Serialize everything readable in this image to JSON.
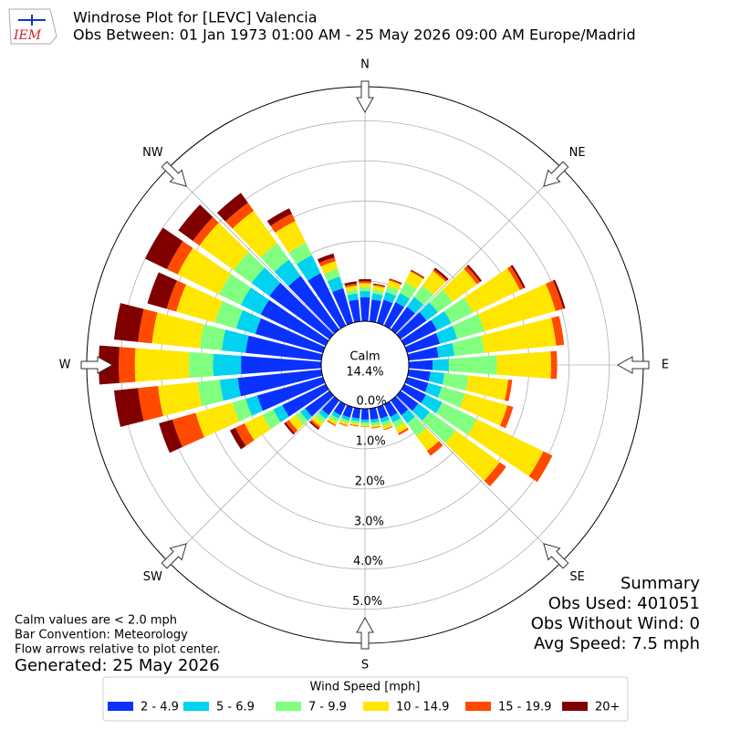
{
  "chart_data": {
    "type": "windrose",
    "logo_text": "IEM",
    "title": "Windrose Plot for [LEVC] Valencia",
    "subtitle": "Obs Between: 01 Jan 1973 01:00 AM - 25 May 2026 09:00 AM Europe/Madrid",
    "compass": [
      "N",
      "NE",
      "E",
      "SE",
      "S",
      "SW",
      "W",
      "NW"
    ],
    "calm": {
      "label": "Calm",
      "value": 14.4,
      "value_label": "14.4%"
    },
    "rlim": [
      0,
      5.85
    ],
    "rticks": [
      {
        "value": 0,
        "label": "0.0%"
      },
      {
        "value": 1,
        "label": "1.0%"
      },
      {
        "value": 2,
        "label": "2.0%"
      },
      {
        "value": 3,
        "label": "3.0%"
      },
      {
        "value": 4,
        "label": "4.0%"
      },
      {
        "value": 5,
        "label": "5.0%"
      }
    ],
    "grid": true,
    "legend_title": "Wind Speed [mph]",
    "series": [
      {
        "name": "2 - 4.9",
        "color": "#0a32ff",
        "values": [
          0.6,
          0.55,
          0.6,
          0.65,
          0.7,
          0.8,
          0.9,
          0.85,
          0.75,
          0.6,
          0.55,
          0.55,
          0.6,
          0.55,
          0.45,
          0.35,
          0.3,
          0.28,
          0.27,
          0.25,
          0.27,
          0.3,
          0.45,
          0.75,
          1.2,
          1.7,
          2.1,
          2.0,
          1.9,
          1.75,
          1.8,
          1.85,
          1.65,
          1.45,
          0.9,
          0.55
        ]
      },
      {
        "name": "5 - 6.9",
        "color": "#00d2f0",
        "values": [
          0.15,
          0.15,
          0.2,
          0.25,
          0.3,
          0.35,
          0.4,
          0.45,
          0.4,
          0.4,
          0.35,
          0.35,
          0.45,
          0.35,
          0.25,
          0.15,
          0.1,
          0.08,
          0.07,
          0.07,
          0.08,
          0.1,
          0.12,
          0.15,
          0.25,
          0.3,
          0.45,
          0.7,
          0.6,
          0.5,
          0.55,
          0.55,
          0.5,
          0.5,
          0.3,
          0.15
        ]
      },
      {
        "name": "7 - 9.9",
        "color": "#80ff80",
        "values": [
          0.1,
          0.1,
          0.15,
          0.3,
          0.35,
          0.45,
          0.6,
          0.7,
          0.75,
          1.2,
          0.6,
          0.6,
          0.95,
          0.8,
          0.4,
          0.15,
          0.1,
          0.07,
          0.06,
          0.06,
          0.07,
          0.1,
          0.12,
          0.15,
          0.3,
          0.35,
          0.55,
          0.6,
          0.55,
          0.55,
          0.6,
          0.55,
          0.5,
          0.35,
          0.2,
          0.1
        ]
      },
      {
        "name": "10 - 14.9",
        "color": "#ffe600",
        "values": [
          0.1,
          0.1,
          0.15,
          0.3,
          0.45,
          0.75,
          1.3,
          1.85,
          1.8,
          1.35,
          1.0,
          1.1,
          1.85,
          1.35,
          0.45,
          0.15,
          0.08,
          0.05,
          0.04,
          0.05,
          0.06,
          0.07,
          0.12,
          0.2,
          0.5,
          0.95,
          1.0,
          1.35,
          1.2,
          1.0,
          1.15,
          1.05,
          1.0,
          0.6,
          0.2,
          0.1
        ]
      },
      {
        "name": "15 - 19.9",
        "color": "#ff4a00",
        "values": [
          0.05,
          0.03,
          0.03,
          0.03,
          0.05,
          0.1,
          0.1,
          0.2,
          0.2,
          0.15,
          0.1,
          0.15,
          0.25,
          0.2,
          0.15,
          0.05,
          0.02,
          0.02,
          0.01,
          0.02,
          0.02,
          0.03,
          0.05,
          0.1,
          0.25,
          0.6,
          0.5,
          0.4,
          0.35,
          0.25,
          0.3,
          0.2,
          0.25,
          0.2,
          0.1,
          0.05
        ]
      },
      {
        "name": "20+",
        "color": "#800000",
        "values": [
          0.05,
          0.02,
          0.02,
          0.02,
          0.05,
          0.05,
          0.05,
          0.05,
          0,
          0,
          0,
          0,
          0,
          0,
          0,
          0,
          0,
          0,
          0,
          0,
          0,
          0,
          0.04,
          0.05,
          0.15,
          0.35,
          0.6,
          0.5,
          0.6,
          0.5,
          0.6,
          0.45,
          0.3,
          0.15,
          0.1,
          0.05
        ]
      }
    ],
    "notes": [
      "Calm values are < 2.0 mph",
      "Bar Convention: Meteorology",
      "Flow arrows relative to plot center."
    ],
    "generated": "Generated: 25 May 2026",
    "summary": [
      "Summary",
      "Obs Used: 401051",
      "Obs Without Wind: 0",
      "Avg Speed: 7.5 mph"
    ]
  }
}
